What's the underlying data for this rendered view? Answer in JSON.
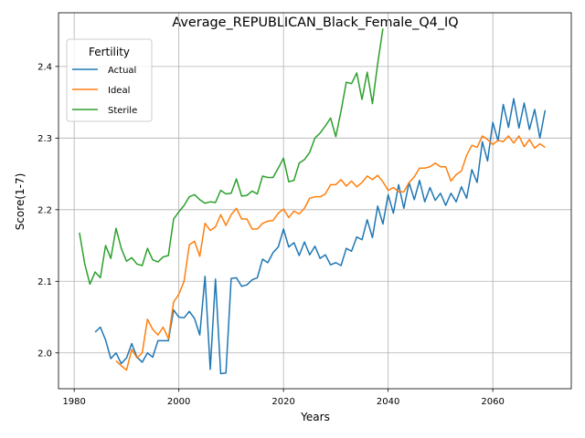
{
  "chart_data": {
    "type": "line",
    "title": "Average_REPUBLICAN_Black_Female_Q4_IQ",
    "xlabel": "Years",
    "ylabel": "Score(1-7)",
    "xlim": [
      1977,
      2075
    ],
    "ylim": [
      1.95,
      2.475
    ],
    "xticks": [
      1980,
      2000,
      2020,
      2040,
      2060
    ],
    "yticks": [
      2.0,
      2.1,
      2.2,
      2.3,
      2.4
    ],
    "xtick_labels": [
      "1980",
      "2000",
      "2020",
      "2040",
      "2060"
    ],
    "ytick_labels": [
      "2.0",
      "2.1",
      "2.2",
      "2.3",
      "2.4"
    ],
    "grid": true,
    "legend": {
      "title": "Fertility",
      "position": "top-left"
    },
    "series": [
      {
        "name": "Actual",
        "color": "#1f77b4",
        "x": [
          1984,
          1985,
          1986,
          1987,
          1988,
          1989,
          1990,
          1991,
          1992,
          1993,
          1994,
          1995,
          1996,
          1997,
          1998,
          1999,
          2000,
          2001,
          2002,
          2003,
          2004,
          2005,
          2006,
          2007,
          2008,
          2009,
          2010,
          2011,
          2012,
          2013,
          2014,
          2015,
          2016,
          2017,
          2018,
          2019,
          2020,
          2021,
          2022,
          2023,
          2024,
          2025,
          2026,
          2027,
          2028,
          2029,
          2030,
          2031,
          2032,
          2033,
          2034,
          2035,
          2036,
          2037,
          2038,
          2039,
          2040,
          2041,
          2042,
          2043,
          2044,
          2045,
          2046,
          2047,
          2048,
          2049,
          2050,
          2051,
          2052,
          2053,
          2054,
          2055,
          2056,
          2057,
          2058,
          2059,
          2060,
          2061,
          2062,
          2063,
          2064,
          2065,
          2066,
          2067,
          2068,
          2069,
          2070
        ],
        "y": [
          2.029,
          2.036,
          2.018,
          1.992,
          2.0,
          1.985,
          1.993,
          2.013,
          1.994,
          1.987,
          2.0,
          1.994,
          2.017,
          2.017,
          2.017,
          2.06,
          2.05,
          2.049,
          2.058,
          2.048,
          2.025,
          2.107,
          1.977,
          2.103,
          1.971,
          1.972,
          2.104,
          2.105,
          2.093,
          2.095,
          2.102,
          2.105,
          2.131,
          2.126,
          2.14,
          2.148,
          2.173,
          2.148,
          2.154,
          2.136,
          2.155,
          2.137,
          2.149,
          2.132,
          2.137,
          2.123,
          2.126,
          2.122,
          2.146,
          2.142,
          2.162,
          2.158,
          2.186,
          2.161,
          2.205,
          2.18,
          2.221,
          2.195,
          2.235,
          2.202,
          2.238,
          2.214,
          2.241,
          2.211,
          2.231,
          2.213,
          2.223,
          2.206,
          2.223,
          2.211,
          2.232,
          2.216,
          2.256,
          2.238,
          2.295,
          2.268,
          2.322,
          2.296,
          2.347,
          2.315,
          2.355,
          2.314,
          2.349,
          2.312,
          2.34,
          2.3,
          2.339
        ]
      },
      {
        "name": "Ideal",
        "color": "#ff7f0e",
        "x": [
          1988,
          1989,
          1990,
          1991,
          1992,
          1993,
          1994,
          1995,
          1996,
          1997,
          1998,
          1999,
          2000,
          2001,
          2002,
          2003,
          2004,
          2005,
          2006,
          2007,
          2008,
          2009,
          2010,
          2011,
          2012,
          2013,
          2014,
          2015,
          2016,
          2017,
          2018,
          2019,
          2020,
          2021,
          2022,
          2023,
          2024,
          2025,
          2026,
          2027,
          2028,
          2029,
          2030,
          2031,
          2032,
          2033,
          2034,
          2035,
          2036,
          2037,
          2038,
          2039,
          2040,
          2041,
          2042,
          2043,
          2044,
          2045,
          2046,
          2047,
          2048,
          2049,
          2050,
          2051,
          2052,
          2053,
          2054,
          2055,
          2056,
          2057,
          2058,
          2059,
          2060,
          2061,
          2062,
          2063,
          2064,
          2065,
          2066,
          2067,
          2068,
          2069,
          2070
        ],
        "y": [
          1.989,
          1.982,
          1.976,
          2.005,
          1.993,
          2.0,
          2.047,
          2.033,
          2.025,
          2.036,
          2.02,
          2.071,
          2.082,
          2.1,
          2.151,
          2.156,
          2.135,
          2.181,
          2.171,
          2.176,
          2.193,
          2.178,
          2.193,
          2.202,
          2.187,
          2.187,
          2.173,
          2.173,
          2.181,
          2.184,
          2.185,
          2.195,
          2.201,
          2.189,
          2.198,
          2.194,
          2.202,
          2.216,
          2.218,
          2.218,
          2.222,
          2.235,
          2.235,
          2.242,
          2.233,
          2.24,
          2.232,
          2.238,
          2.247,
          2.242,
          2.248,
          2.239,
          2.227,
          2.231,
          2.225,
          2.225,
          2.238,
          2.246,
          2.258,
          2.258,
          2.26,
          2.265,
          2.26,
          2.26,
          2.24,
          2.249,
          2.254,
          2.276,
          2.29,
          2.287,
          2.303,
          2.298,
          2.291,
          2.297,
          2.295,
          2.303,
          2.293,
          2.303,
          2.288,
          2.298,
          2.286,
          2.292,
          2.287
        ]
      },
      {
        "name": "Sterile",
        "color": "#2ca02c",
        "x": [
          1981,
          1982,
          1983,
          1984,
          1985,
          1986,
          1987,
          1988,
          1989,
          1990,
          1991,
          1992,
          1993,
          1994,
          1995,
          1996,
          1997,
          1998,
          1999,
          2000,
          2001,
          2002,
          2003,
          2004,
          2005,
          2006,
          2007,
          2008,
          2009,
          2010,
          2011,
          2012,
          2013,
          2014,
          2015,
          2016,
          2017,
          2018,
          2019,
          2020,
          2021,
          2022,
          2023,
          2024,
          2025,
          2026,
          2027,
          2028,
          2029,
          2030,
          2031,
          2032,
          2033,
          2034,
          2035,
          2036,
          2037,
          2038,
          2039
        ],
        "y": [
          2.168,
          2.125,
          2.096,
          2.113,
          2.105,
          2.15,
          2.132,
          2.174,
          2.146,
          2.128,
          2.133,
          2.124,
          2.122,
          2.146,
          2.13,
          2.127,
          2.134,
          2.136,
          2.187,
          2.197,
          2.206,
          2.218,
          2.221,
          2.214,
          2.209,
          2.211,
          2.21,
          2.227,
          2.222,
          2.223,
          2.243,
          2.219,
          2.22,
          2.226,
          2.222,
          2.247,
          2.245,
          2.245,
          2.258,
          2.272,
          2.239,
          2.241,
          2.265,
          2.27,
          2.28,
          2.3,
          2.307,
          2.317,
          2.328,
          2.302,
          2.338,
          2.378,
          2.376,
          2.391,
          2.354,
          2.392,
          2.348,
          2.404,
          2.453
        ]
      }
    ]
  }
}
